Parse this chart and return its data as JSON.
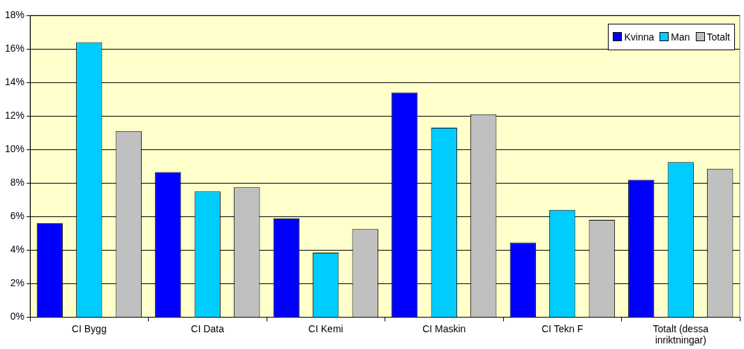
{
  "chart_data": {
    "type": "bar",
    "categories": [
      "CI Bygg",
      "CI Data",
      "CI Kemi",
      "CI Maskin",
      "CI Tekn F",
      "Totalt (dessa inriktningar)"
    ],
    "series": [
      {
        "name": "Kvinna",
        "color": "#0000ff",
        "values": [
          5.6,
          8.65,
          5.9,
          13.4,
          4.45,
          8.2
        ]
      },
      {
        "name": "Man",
        "color": "#00ccff",
        "values": [
          16.4,
          7.5,
          3.85,
          11.3,
          6.4,
          9.25
        ]
      },
      {
        "name": "Totalt",
        "color": "#c0c0c0",
        "values": [
          11.1,
          7.75,
          5.25,
          12.1,
          5.8,
          8.85
        ]
      }
    ],
    "ylim": [
      0,
      18
    ],
    "yticks": [
      {
        "value": 0,
        "label": "0%"
      },
      {
        "value": 2,
        "label": "2%"
      },
      {
        "value": 4,
        "label": "4%"
      },
      {
        "value": 6,
        "label": "6%"
      },
      {
        "value": 8,
        "label": "8%"
      },
      {
        "value": 10,
        "label": "10%"
      },
      {
        "value": 12,
        "label": "12%"
      },
      {
        "value": 14,
        "label": "14%"
      },
      {
        "value": 16,
        "label": "16%"
      },
      {
        "value": 18,
        "label": "18%"
      }
    ],
    "grid": "y",
    "legend": "top right"
  }
}
